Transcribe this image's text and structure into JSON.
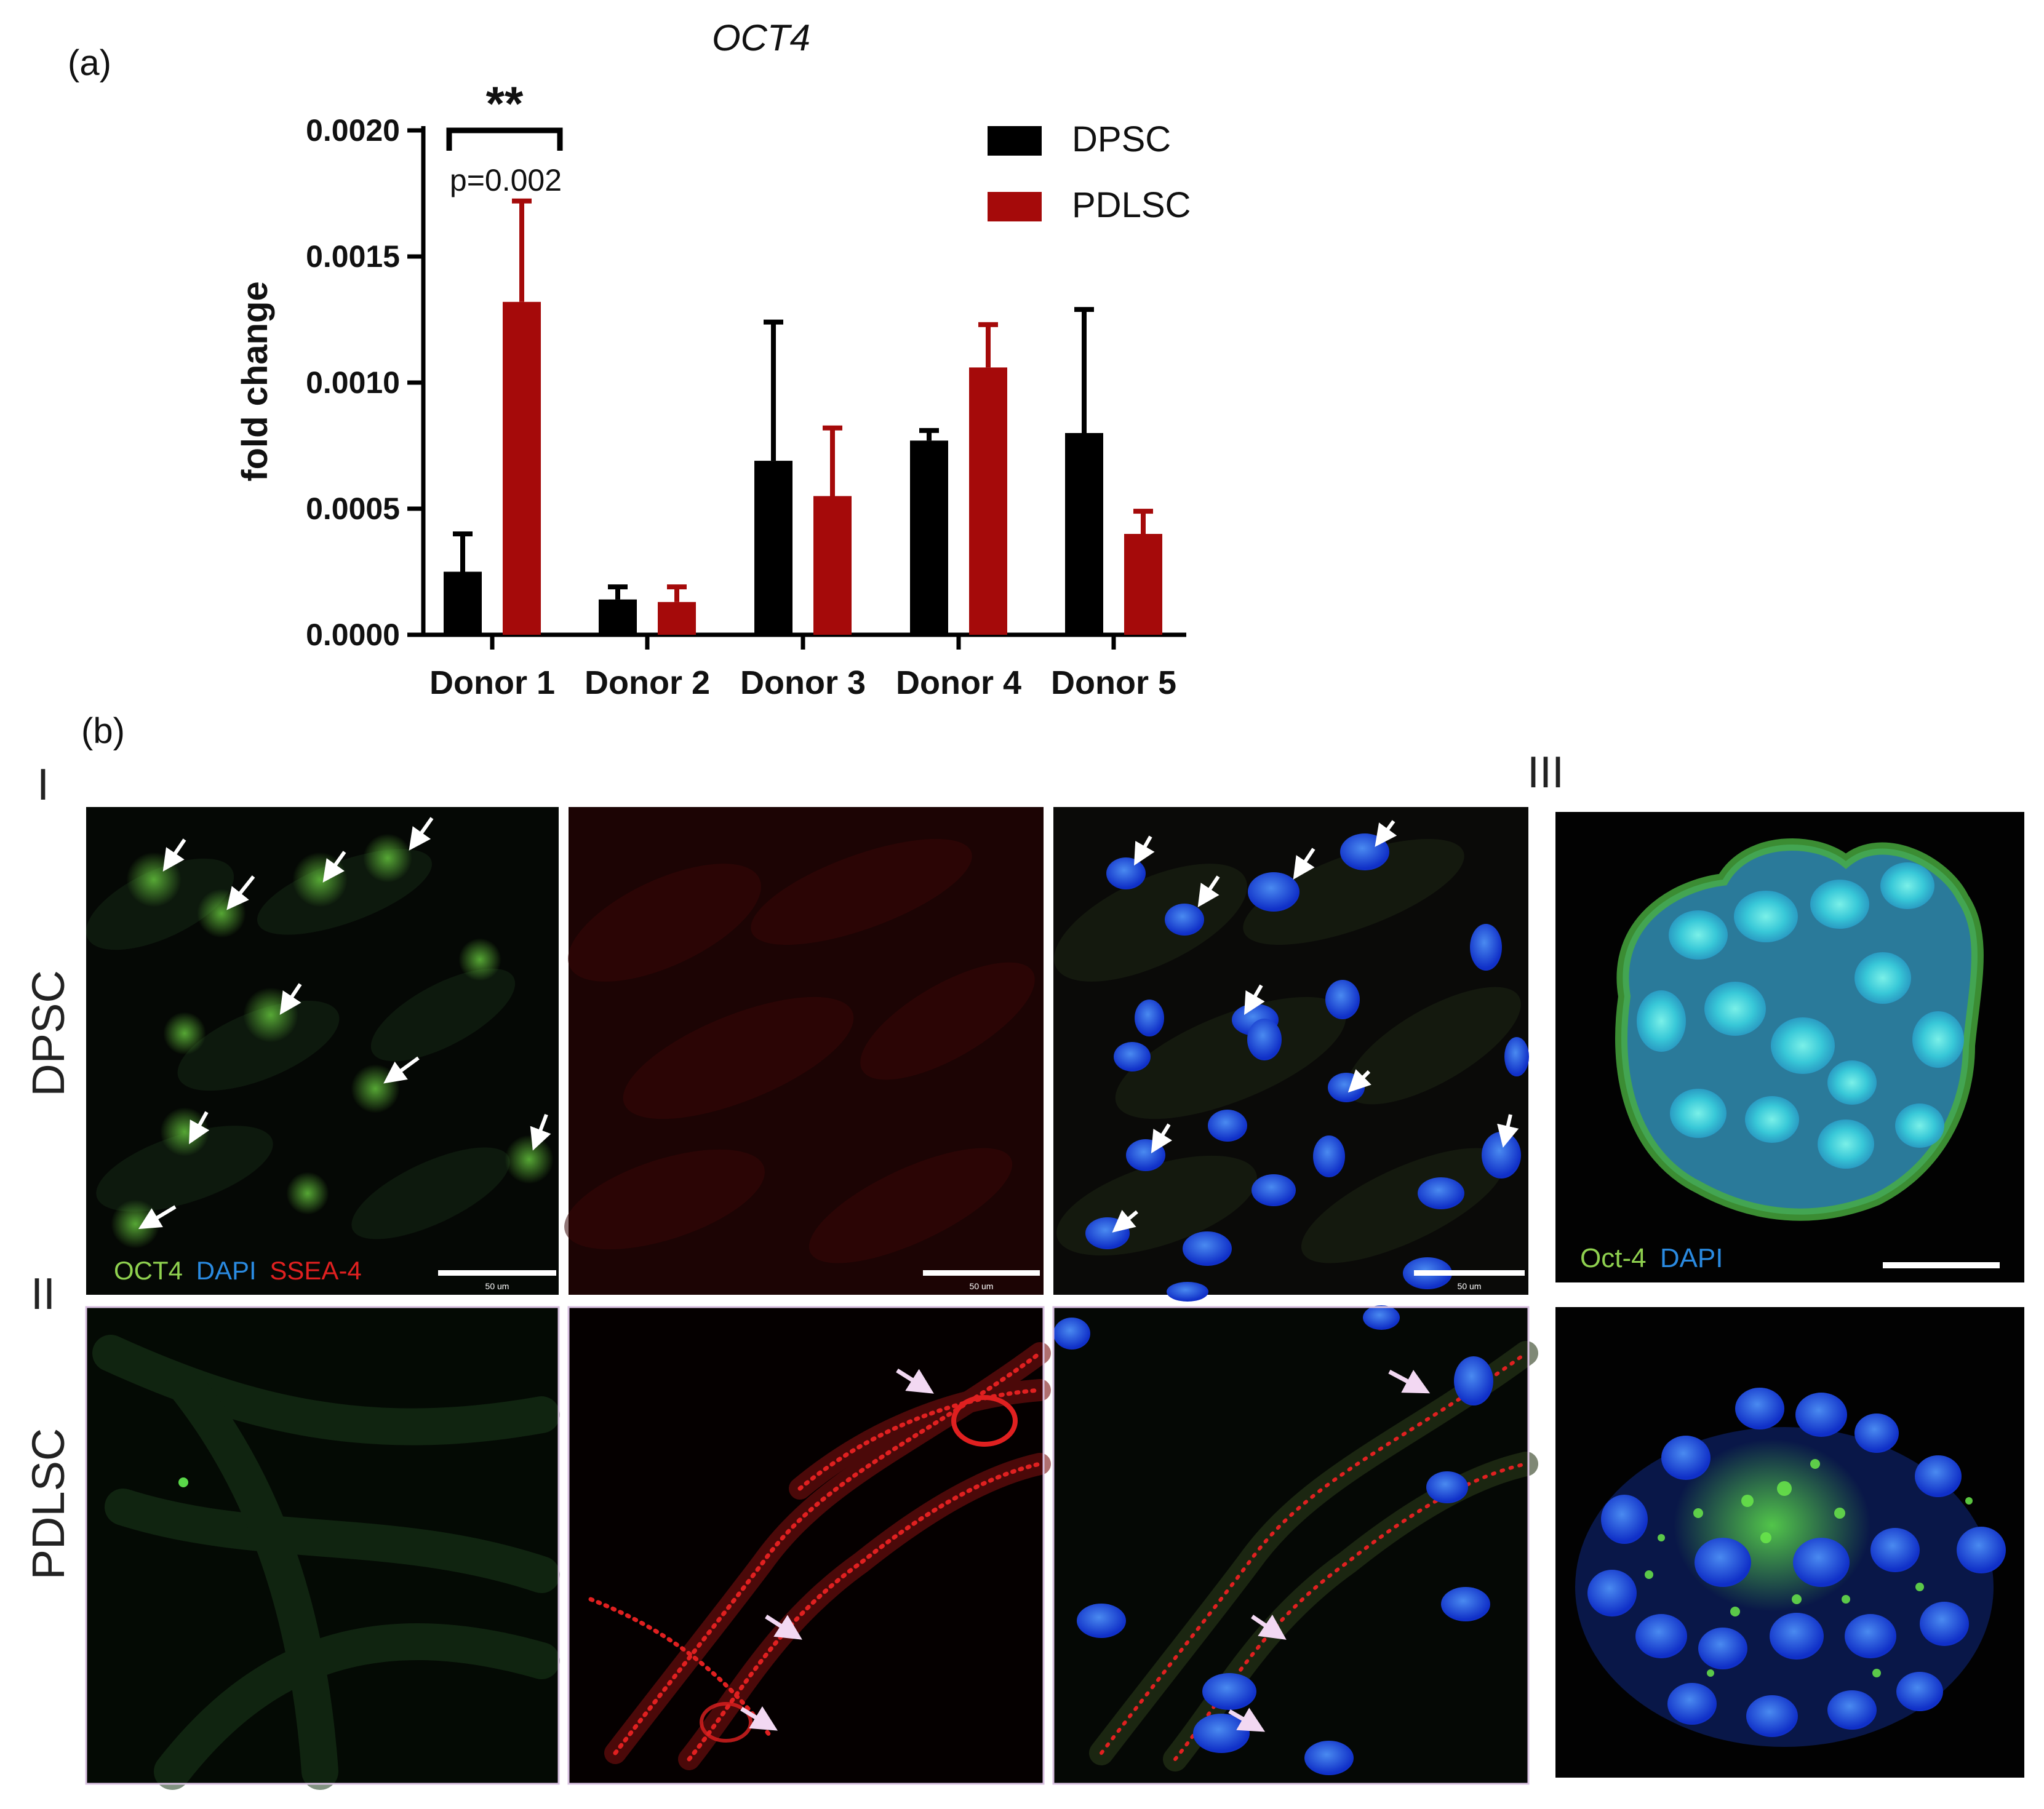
{
  "panel_a_label": "(a)",
  "panel_b_label": "(b)",
  "row_labels": [
    "I",
    "II",
    "III"
  ],
  "cell_types": [
    "DPSC",
    "PDLSC"
  ],
  "stain_legend_1": {
    "oct4": "OCT4",
    "dapi": "DAPI",
    "ssea4": "SSEA-4"
  },
  "stain_legend_2": {
    "oct4": "Oct-4",
    "dapi": "DAPI"
  },
  "scale_bar_text": "50 um",
  "colors": {
    "dpsc": "#000000",
    "pdlsc": "#a50a0a",
    "oct4": "#8fd14f",
    "dapi": "#2a8ae0",
    "ssea4": "#e02020",
    "arrow": "#ffffff"
  },
  "chart_data": {
    "type": "bar",
    "title": "OCT4",
    "ylabel": "fold change",
    "xlabel": "",
    "ylim": [
      0,
      0.002
    ],
    "yticks": [
      "0.0000",
      "0.0005",
      "0.0010",
      "0.0015",
      "0.0020"
    ],
    "categories": [
      "Donor 1",
      "Donor 2",
      "Donor 3",
      "Donor 4",
      "Donor 5"
    ],
    "series": [
      {
        "name": "DPSC",
        "values": [
          0.00025,
          0.00014,
          0.00069,
          0.00077,
          0.0008
        ],
        "errors": [
          0.00015,
          5e-05,
          0.00055,
          4e-05,
          0.00049
        ]
      },
      {
        "name": "PDLSC",
        "values": [
          0.00132,
          0.00013,
          0.00055,
          0.00106,
          0.0004
        ],
        "errors": [
          0.0004,
          6e-05,
          0.00027,
          0.00017,
          9e-05
        ]
      }
    ],
    "annotation": {
      "stars": "**",
      "p": "p=0.002"
    },
    "legend_position": "top-right"
  }
}
